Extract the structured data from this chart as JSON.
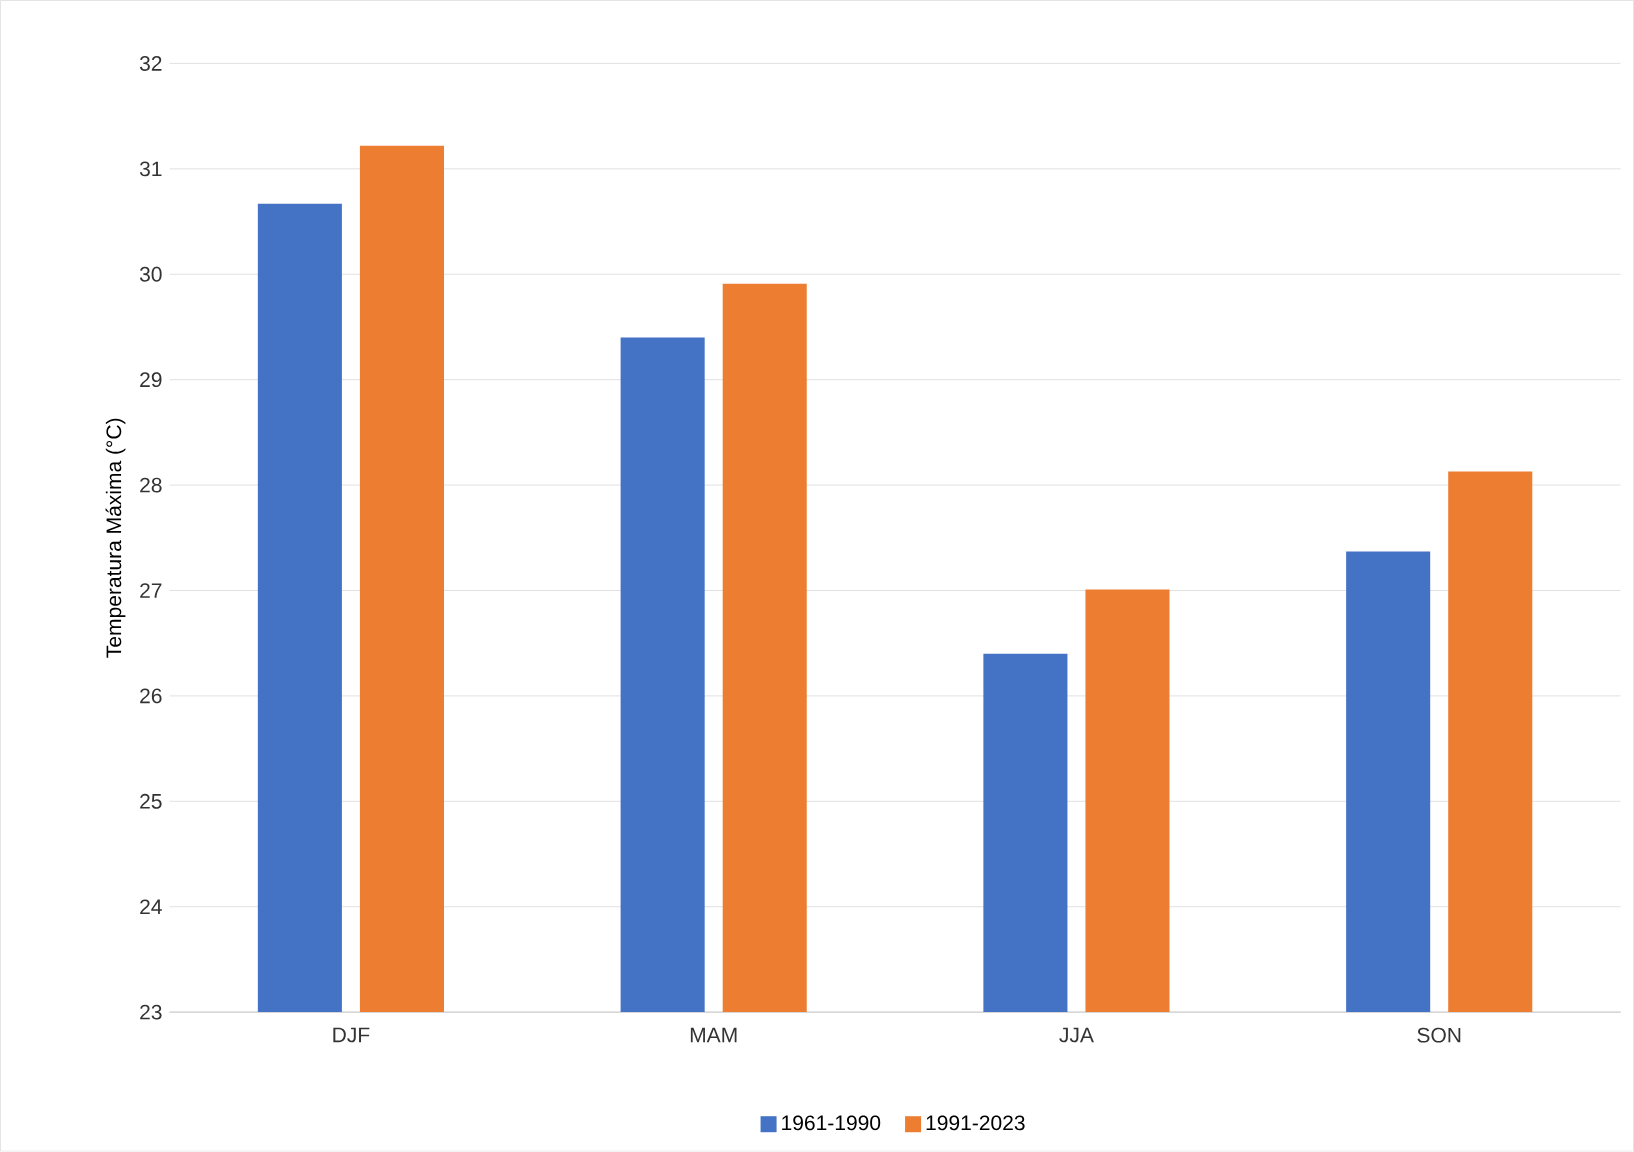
{
  "chart_data": {
    "type": "bar",
    "ylabel": "Temperatura Máxima (°C)",
    "categories": [
      "DJF",
      "MAM",
      "JJA",
      "SON"
    ],
    "series": [
      {
        "name": "1961-1990",
        "color": "#4472c4",
        "values": [
          30.67,
          29.4,
          26.4,
          27.37
        ]
      },
      {
        "name": "1991-2023",
        "color": "#ed7d31",
        "values": [
          31.22,
          29.91,
          27.01,
          28.13
        ]
      }
    ],
    "ylim": [
      23,
      32
    ],
    "yticks": [
      23,
      24,
      25,
      26,
      27,
      28,
      29,
      30,
      31,
      32
    ],
    "grid": "y",
    "legend": "bottom"
  }
}
